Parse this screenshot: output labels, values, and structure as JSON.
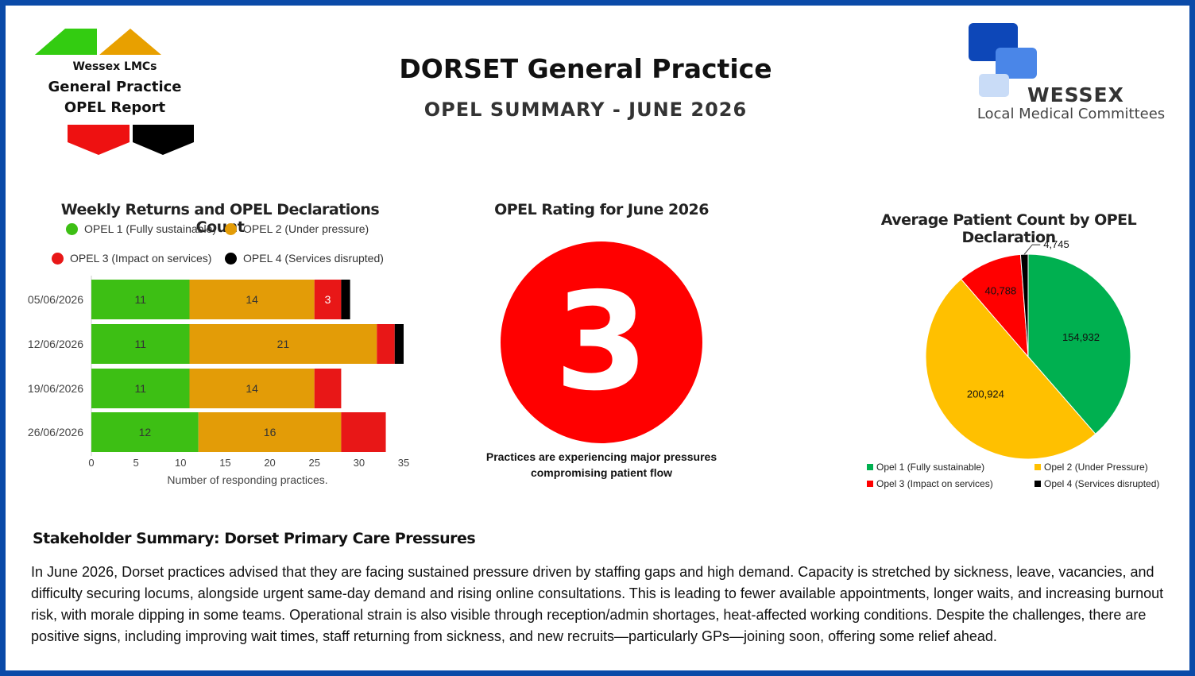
{
  "header": {
    "title": "DORSET General Practice",
    "subtitle": "OPEL SUMMARY - JUNE 2026"
  },
  "logo_left": {
    "line1": "Wessex LMCs",
    "line2": "General Practice",
    "line3": "OPEL Report",
    "colors": [
      "#33cc11",
      "#e8a000",
      "#ee1111",
      "#000000"
    ]
  },
  "logo_right": {
    "name": "WESSEX",
    "tagline": "Local Medical Committees",
    "colors": [
      "#0d47b8",
      "#4a86e8",
      "#c9dcf7"
    ]
  },
  "bar_chart_legend": [
    {
      "label": "OPEL 1 (Fully sustainable)",
      "color": "#3dbf14"
    },
    {
      "label": "OPEL 2 (Under pressure)",
      "color": "#e39c07"
    },
    {
      "label": "OPEL 3 (Impact on services)",
      "color": "#e81717"
    },
    {
      "label": "OPEL 4 (Services disrupted)",
      "color": "#000000"
    }
  ],
  "rating": {
    "title": "OPEL Rating for June 2026",
    "value": "3",
    "caption": "Practices are experiencing major pressures compromising patient flow",
    "color": "#ff0000"
  },
  "pie_legend": [
    {
      "label": "Opel 1 (Fully sustainable)",
      "color": "#00b050"
    },
    {
      "label": "Opel 2 (Under Pressure)",
      "color": "#ffc000"
    },
    {
      "label": "Opel 3 (Impact on services)",
      "color": "#ff0000"
    },
    {
      "label": "Opel 4 (Services disrupted)",
      "color": "#000000"
    }
  ],
  "summary": {
    "title": "Stakeholder Summary: Dorset Primary Care Pressures",
    "body": "In June 2026, Dorset practices advised that they are facing sustained pressure driven by staffing gaps and high demand. Capacity is stretched by sickness, leave, vacancies, and difficulty securing locums, alongside urgent same-day demand and rising online consultations. This is leading to fewer available appointments, longer waits, and increasing burnout risk, with morale dipping in some teams. Operational strain is also visible through reception/admin shortages, heat-affected working conditions. Despite the challenges, there are positive signs, including improving wait times, staff returning from sickness, and new recruits—particularly GPs—joining soon, offering some relief ahead."
  },
  "chart_data": [
    {
      "type": "bar",
      "orientation": "horizontal",
      "stacked": true,
      "title": "Weekly Returns and OPEL Declarations Count",
      "xlabel": "Number of responding practices.",
      "ylabel": "",
      "xlim": [
        0,
        35
      ],
      "xticks": [
        0,
        5,
        10,
        15,
        20,
        25,
        30,
        35
      ],
      "legend_position": "top",
      "categories": [
        "05/06/2026",
        "12/06/2026",
        "19/06/2026",
        "26/06/2026"
      ],
      "series": [
        {
          "name": "OPEL 1 (Fully sustainable)",
          "values": [
            11,
            11,
            11,
            12
          ],
          "color": "#3dbf14",
          "label_color": "#333333"
        },
        {
          "name": "OPEL 2 (Under pressure)",
          "values": [
            14,
            21,
            14,
            16
          ],
          "color": "#e39c07",
          "label_color": "#333333"
        },
        {
          "name": "OPEL 3 (Impact on services)",
          "values": [
            3,
            2,
            3,
            5
          ],
          "color": "#e81717",
          "label_color": "#ffffff"
        },
        {
          "name": "OPEL 4 (Services disrupted)",
          "values": [
            1,
            1,
            0,
            0
          ],
          "color": "#000000",
          "label_color": "#ffffff"
        }
      ],
      "show_labels": [
        [
          true,
          true,
          true,
          true
        ],
        [
          true,
          true,
          true,
          true
        ],
        [
          true,
          false,
          false,
          false
        ]
      ],
      "grid": false
    },
    {
      "type": "pie",
      "title": "Average Patient Count by OPEL Declaration",
      "legend_position": "bottom",
      "slices": [
        {
          "name": "Opel 1 (Fully sustainable)",
          "value": 154932,
          "label": "154,932",
          "color": "#00b050"
        },
        {
          "name": "Opel 2 (Under Pressure)",
          "value": 200924,
          "label": "200,924",
          "color": "#ffc000"
        },
        {
          "name": "Opel 3 (Impact on services)",
          "value": 40788,
          "label": "40,788",
          "color": "#ff0000"
        },
        {
          "name": "Opel 4 (Services disrupted)",
          "value": 4745,
          "label": "4,745",
          "color": "#000000"
        }
      ]
    }
  ]
}
